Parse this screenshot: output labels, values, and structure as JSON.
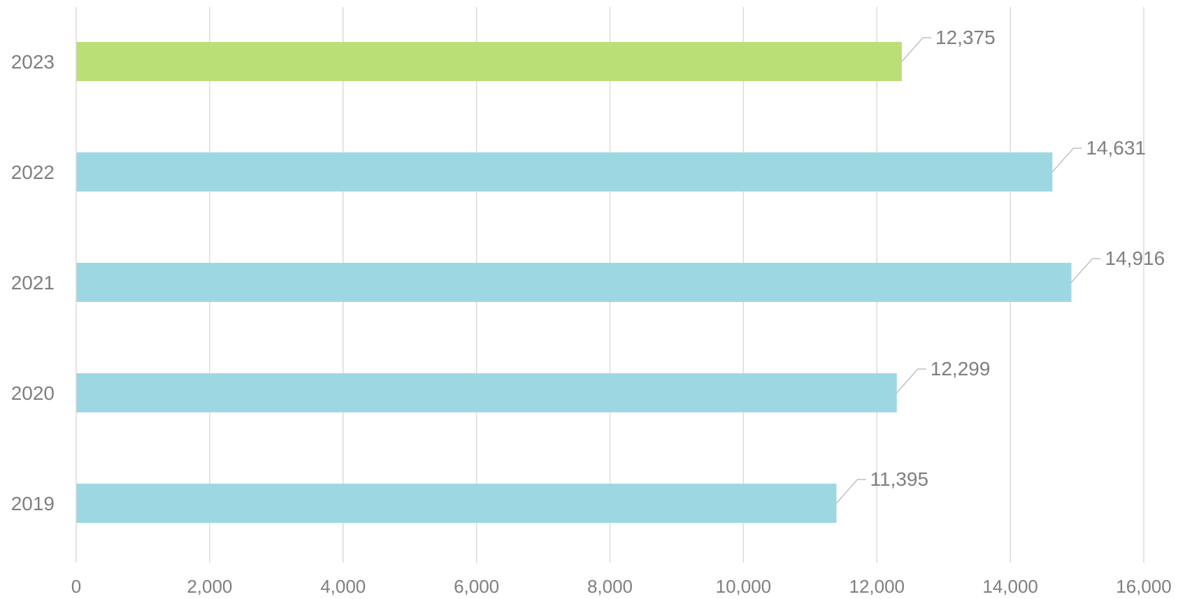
{
  "chart_data": {
    "type": "bar",
    "orientation": "horizontal",
    "categories": [
      "2019",
      "2020",
      "2021",
      "2022",
      "2023"
    ],
    "values": [
      11395,
      12299,
      14916,
      14631,
      12375
    ],
    "data_labels": [
      "11,395",
      "12,299",
      "14,916",
      "14,631",
      "12,375"
    ],
    "bar_colors": [
      "#9dd8e2",
      "#9dd8e2",
      "#9dd8e2",
      "#9dd8e2",
      "#bbdf77"
    ],
    "x_ticks": [
      0,
      2000,
      4000,
      6000,
      8000,
      10000,
      12000,
      14000,
      16000
    ],
    "x_tick_labels": [
      "0",
      "2,000",
      "4,000",
      "6,000",
      "8,000",
      "10,000",
      "12,000",
      "14,000",
      "16,000"
    ],
    "xlim": [
      0,
      16000
    ],
    "title": "",
    "xlabel": "",
    "ylabel": "",
    "grid": "vertical",
    "legend": "none"
  }
}
